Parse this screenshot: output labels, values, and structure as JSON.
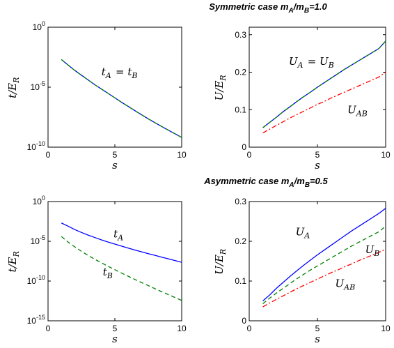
{
  "figure": {
    "row_titles": [
      {
        "text": "Symmetric case m",
        "sub1": "A",
        "mid": "/m",
        "sub2": "B",
        "tail": "=1.0"
      },
      {
        "text": "Asymmetric case m",
        "sub1": "A",
        "mid": "/m",
        "sub2": "B",
        "tail": "=0.5"
      }
    ]
  },
  "chart_data": [
    {
      "type": "line",
      "panel": "top-left",
      "xlabel": "s",
      "ylabel": "t/E_R",
      "yscale": "log",
      "xlim": [
        0,
        10
      ],
      "ylim": [
        1e-10,
        1
      ],
      "xticks": [
        0,
        5,
        10
      ],
      "yticks": [
        {
          "v": 1,
          "base": "10",
          "exp": "0"
        },
        {
          "v": 1e-05,
          "base": "10",
          "exp": "-5"
        },
        {
          "v": 1e-10,
          "base": "10",
          "exp": "-10"
        }
      ],
      "x": [
        1,
        1.5,
        2,
        2.5,
        3,
        3.5,
        4,
        4.5,
        5,
        5.5,
        6,
        6.5,
        7,
        7.5,
        8,
        8.5,
        9,
        9.5,
        10
      ],
      "series": [
        {
          "color": "#0000ff",
          "dash": "solid",
          "values": [
            0.002,
            0.0007,
            0.00025,
            0.0001,
            4e-05,
            1.6e-05,
            7e-06,
            3e-06,
            1.3e-06,
            5.5e-07,
            2.5e-07,
            1.1e-07,
            5e-08,
            2.3e-08,
            1.1e-08,
            5.3e-09,
            2.6e-09,
            1.3e-09,
            6.5e-10
          ]
        },
        {
          "color": "#008000",
          "dash": "dashed",
          "values": [
            0.002,
            0.0007,
            0.00025,
            0.0001,
            4e-05,
            1.6e-05,
            7e-06,
            3e-06,
            1.3e-06,
            5.5e-07,
            2.5e-07,
            1.1e-07,
            5e-08,
            2.3e-08,
            1.1e-08,
            5.3e-09,
            2.6e-09,
            1.3e-09,
            6.5e-10
          ]
        }
      ],
      "annotations": [
        {
          "text": "t_A = t_B",
          "x": 4.0,
          "y": 0.0001
        }
      ]
    },
    {
      "type": "line",
      "panel": "top-right",
      "xlabel": "s",
      "ylabel": "U/E_R",
      "yscale": "linear",
      "xlim": [
        0,
        10
      ],
      "ylim": [
        0,
        0.32
      ],
      "xticks": [
        0,
        5,
        10
      ],
      "yticks": [
        {
          "v": 0,
          "label": "0"
        },
        {
          "v": 0.1,
          "label": "0.1"
        },
        {
          "v": 0.2,
          "label": "0.2"
        },
        {
          "v": 0.3,
          "label": "0.3"
        }
      ],
      "x": [
        1,
        1.5,
        2,
        2.5,
        3,
        3.5,
        4,
        4.5,
        5,
        5.5,
        6,
        6.5,
        7,
        7.5,
        8,
        8.5,
        9,
        9.5,
        10
      ],
      "series": [
        {
          "color": "#0000ff",
          "dash": "solid",
          "values": [
            0.052,
            0.066,
            0.08,
            0.095,
            0.108,
            0.122,
            0.135,
            0.147,
            0.16,
            0.172,
            0.184,
            0.196,
            0.208,
            0.219,
            0.23,
            0.241,
            0.252,
            0.263,
            0.283
          ]
        },
        {
          "color": "#008000",
          "dash": "dashed",
          "values": [
            0.052,
            0.066,
            0.08,
            0.095,
            0.108,
            0.122,
            0.135,
            0.147,
            0.16,
            0.172,
            0.184,
            0.196,
            0.208,
            0.219,
            0.23,
            0.241,
            0.252,
            0.263,
            0.283
          ]
        },
        {
          "color": "#ff0000",
          "dash": "dashdot",
          "values": [
            0.038,
            0.048,
            0.058,
            0.068,
            0.078,
            0.087,
            0.096,
            0.105,
            0.114,
            0.122,
            0.131,
            0.139,
            0.147,
            0.155,
            0.163,
            0.171,
            0.179,
            0.187,
            0.2
          ]
        }
      ],
      "annotations": [
        {
          "text": "U_A = U_B",
          "x": 2.9,
          "y": 0.22
        },
        {
          "text": "U_AB",
          "x": 7.2,
          "y": 0.09
        }
      ]
    },
    {
      "type": "line",
      "panel": "bottom-left",
      "xlabel": "s",
      "ylabel": "t/E_R",
      "yscale": "log",
      "xlim": [
        0,
        10
      ],
      "ylim": [
        1e-15,
        1
      ],
      "xticks": [
        0,
        5,
        10
      ],
      "yticks": [
        {
          "v": 1,
          "base": "10",
          "exp": "0"
        },
        {
          "v": 1e-05,
          "base": "10",
          "exp": "-5"
        },
        {
          "v": 1e-10,
          "base": "10",
          "exp": "-10"
        },
        {
          "v": 1e-15,
          "base": "10",
          "exp": "-15"
        }
      ],
      "x": [
        1,
        1.5,
        2,
        2.5,
        3,
        3.5,
        4,
        4.5,
        5,
        5.5,
        6,
        6.5,
        7,
        7.5,
        8,
        8.5,
        9,
        9.5,
        10
      ],
      "series": [
        {
          "color": "#0000ff",
          "dash": "solid",
          "values": [
            0.002,
            0.0008,
            0.0003,
            0.00013,
            6e-05,
            3e-05,
            1.5e-05,
            8e-06,
            4.5e-06,
            2.5e-06,
            1.4e-06,
            8e-07,
            4.7e-07,
            2.8e-07,
            1.7e-07,
            1e-07,
            6.2e-08,
            3.8e-08,
            2.3e-08
          ]
        },
        {
          "color": "#008000",
          "dash": "dashed",
          "values": [
            4e-05,
            8e-06,
            2e-06,
            5.5e-07,
            1.7e-07,
            5.5e-08,
            2e-08,
            7e-09,
            2.7e-09,
            1e-09,
            4e-10,
            1.6e-10,
            6.5e-11,
            2.7e-11,
            1.1e-11,
            4.6e-12,
            2e-12,
            8.5e-13,
            3.6e-13
          ]
        }
      ],
      "annotations": [
        {
          "text": "t_A",
          "x": 4.9,
          "y": 3e-05
        },
        {
          "text": "t_B",
          "x": 4.1,
          "y": 5e-10
        }
      ]
    },
    {
      "type": "line",
      "panel": "bottom-right",
      "xlabel": "s",
      "ylabel": "U/E_R",
      "yscale": "linear",
      "xlim": [
        0,
        10
      ],
      "ylim": [
        0,
        0.3
      ],
      "xticks": [
        0,
        5,
        10
      ],
      "yticks": [
        {
          "v": 0,
          "label": "0"
        },
        {
          "v": 0.1,
          "label": "0.1"
        },
        {
          "v": 0.2,
          "label": "0.2"
        },
        {
          "v": 0.3,
          "label": "0.3"
        }
      ],
      "x": [
        1,
        1.5,
        2,
        2.5,
        3,
        3.5,
        4,
        4.5,
        5,
        5.5,
        6,
        6.5,
        7,
        7.5,
        8,
        8.5,
        9,
        9.5,
        10
      ],
      "series": [
        {
          "color": "#0000ff",
          "dash": "solid",
          "values": [
            0.05,
            0.065,
            0.082,
            0.097,
            0.112,
            0.126,
            0.14,
            0.153,
            0.166,
            0.178,
            0.19,
            0.202,
            0.214,
            0.226,
            0.237,
            0.248,
            0.259,
            0.27,
            0.283
          ]
        },
        {
          "color": "#008000",
          "dash": "dashed",
          "values": [
            0.043,
            0.057,
            0.07,
            0.082,
            0.094,
            0.106,
            0.117,
            0.128,
            0.138,
            0.148,
            0.158,
            0.168,
            0.178,
            0.188,
            0.197,
            0.206,
            0.215,
            0.224,
            0.238
          ]
        },
        {
          "color": "#ff0000",
          "dash": "dashdot",
          "values": [
            0.035,
            0.045,
            0.054,
            0.063,
            0.072,
            0.081,
            0.089,
            0.097,
            0.105,
            0.113,
            0.121,
            0.128,
            0.136,
            0.143,
            0.151,
            0.158,
            0.165,
            0.172,
            0.18
          ]
        }
      ],
      "annotations": [
        {
          "text": "U_A",
          "x": 3.4,
          "y": 0.215
        },
        {
          "text": "U_B",
          "x": 8.5,
          "y": 0.17
        },
        {
          "text": "U_AB",
          "x": 6.3,
          "y": 0.085
        }
      ]
    }
  ]
}
